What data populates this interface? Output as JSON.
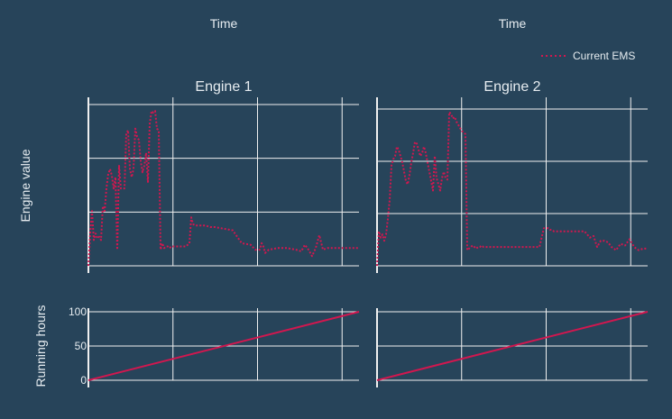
{
  "header": {
    "x_titles": [
      "Time",
      "Time"
    ]
  },
  "legend": {
    "label": "Current EMS",
    "placement": "top-right",
    "style": "dotted"
  },
  "colors": {
    "background": "#27445a",
    "grid": "#f0f0f0",
    "series": "#d1174f",
    "text": "#e6ecf0"
  },
  "y_labels": {
    "engine": "Engine value",
    "hours": "Running hours"
  },
  "chart_data": [
    {
      "type": "line",
      "title": "Engine 1",
      "panel": "top-left",
      "xlabel": "Time",
      "ylabel": "Engine value",
      "grid": true,
      "x_range": [
        0,
        300
      ],
      "ylim": [
        0,
        100
      ],
      "series": [
        {
          "name": "Current EMS",
          "style": "dotted",
          "x": [
            0,
            2,
            4,
            6,
            8,
            10,
            12,
            14,
            16,
            18,
            20,
            22,
            24,
            26,
            28,
            30,
            32,
            34,
            36,
            38,
            40,
            42,
            44,
            46,
            48,
            50,
            52,
            54,
            56,
            58,
            60,
            62,
            64,
            66,
            68,
            70,
            72,
            74,
            76,
            78,
            80,
            82,
            84,
            86,
            88,
            90,
            92,
            94,
            96,
            98,
            100,
            102,
            104,
            106,
            108,
            110,
            112,
            114,
            116,
            118,
            120,
            122,
            124,
            126,
            128,
            130,
            135,
            140,
            150,
            160,
            170,
            180,
            185,
            190,
            192,
            194,
            196,
            200,
            210,
            220,
            230,
            236,
            240,
            244,
            246,
            248,
            252,
            256,
            260,
            265,
            270,
            275,
            280,
            285,
            290,
            295,
            300
          ],
          "values": [
            0,
            20,
            34,
            16,
            20,
            17,
            18,
            16,
            37,
            34,
            48,
            57,
            60,
            56,
            48,
            55,
            10,
            62,
            48,
            48,
            48,
            82,
            84,
            60,
            55,
            60,
            85,
            80,
            78,
            65,
            58,
            62,
            70,
            52,
            88,
            96,
            95,
            96,
            85,
            84,
            10,
            14,
            11,
            12,
            12,
            11,
            12,
            12,
            12,
            12,
            12,
            12,
            12,
            12,
            12,
            13,
            14,
            30,
            26,
            25,
            25,
            25,
            25,
            25,
            25,
            25,
            24,
            24,
            23,
            22,
            14,
            13,
            10,
            10,
            14,
            12,
            8,
            10,
            11,
            11,
            10,
            9,
            13,
            10,
            8,
            6,
            11,
            19,
            10,
            11,
            11,
            11,
            11,
            11,
            11,
            11,
            11
          ]
        }
      ]
    },
    {
      "type": "line",
      "title": "Engine 2",
      "panel": "top-right",
      "xlabel": "Time",
      "ylabel": "",
      "grid": true,
      "x_range": [
        0,
        300
      ],
      "ylim": [
        0,
        100
      ],
      "series": [
        {
          "name": "Current EMS",
          "style": "dotted",
          "x": [
            0,
            2,
            4,
            6,
            8,
            10,
            12,
            14,
            16,
            18,
            20,
            22,
            24,
            26,
            28,
            30,
            32,
            34,
            36,
            38,
            40,
            42,
            44,
            46,
            48,
            50,
            52,
            54,
            56,
            58,
            60,
            62,
            64,
            66,
            68,
            70,
            72,
            74,
            76,
            78,
            80,
            82,
            84,
            86,
            88,
            90,
            92,
            94,
            96,
            98,
            100,
            102,
            104,
            106,
            108,
            110,
            112,
            114,
            116,
            118,
            120,
            122,
            124,
            126,
            128,
            130,
            135,
            140,
            150,
            160,
            170,
            180,
            185,
            190,
            192,
            194,
            196,
            200,
            210,
            220,
            230,
            236,
            240,
            244,
            246,
            248,
            252,
            256,
            260,
            265,
            270,
            275,
            280,
            285,
            290,
            295,
            300
          ],
          "values": [
            0,
            22,
            18,
            20,
            16,
            20,
            30,
            42,
            64,
            68,
            70,
            76,
            74,
            70,
            66,
            60,
            54,
            52,
            58,
            66,
            72,
            79,
            78,
            74,
            70,
            72,
            76,
            72,
            66,
            60,
            54,
            48,
            70,
            56,
            52,
            48,
            56,
            60,
            56,
            55,
            98,
            97,
            94,
            95,
            92,
            90,
            88,
            86,
            85,
            84,
            10,
            11,
            12,
            13,
            12,
            11,
            12,
            12,
            13,
            12,
            12,
            12,
            12,
            12,
            12,
            12,
            12,
            12,
            12,
            12,
            12,
            12,
            24,
            24,
            23,
            23,
            22,
            22,
            22,
            22,
            22,
            18,
            19,
            12,
            14,
            16,
            16,
            15,
            12,
            10,
            14,
            13,
            17,
            12,
            10,
            11,
            11
          ]
        }
      ]
    },
    {
      "type": "line",
      "title": "",
      "panel": "bottom-left",
      "xlabel": "",
      "ylabel": "Running hours",
      "grid": true,
      "x_range": [
        0,
        300
      ],
      "ylim": [
        0,
        100
      ],
      "yticks": [
        0,
        50,
        100
      ],
      "ytick_labels": [
        "0",
        "50",
        "100"
      ],
      "series": [
        {
          "name": "",
          "style": "solid",
          "x": [
            0,
            300
          ],
          "values": [
            0,
            100
          ]
        }
      ]
    },
    {
      "type": "line",
      "title": "",
      "panel": "bottom-right",
      "xlabel": "",
      "ylabel": "",
      "grid": true,
      "x_range": [
        0,
        300
      ],
      "ylim": [
        0,
        100
      ],
      "yticks": [
        0,
        50,
        100
      ],
      "ytick_labels": [],
      "series": [
        {
          "name": "",
          "style": "solid",
          "x": [
            0,
            300
          ],
          "values": [
            0,
            100
          ]
        }
      ]
    }
  ]
}
